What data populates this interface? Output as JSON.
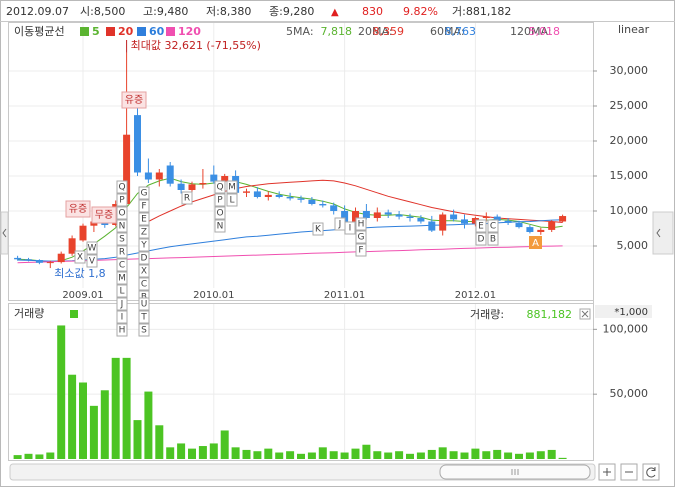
{
  "info": {
    "date": "2012.09.07",
    "open": "시:8,500",
    "high": "고:9,480",
    "low": "저:8,380",
    "close": "종:9,280",
    "change_sign": "▲",
    "change": "830",
    "change_pct": "9.82%",
    "volume": "거:881,182"
  },
  "chart_data": [
    {
      "type": "candlestick",
      "legend_title": "이동평균선",
      "scale": "linear",
      "categories": [
        null,
        null,
        null,
        null,
        null,
        null,
        "2009.01",
        null,
        null,
        null,
        null,
        null,
        null,
        null,
        null,
        null,
        null,
        null,
        "2010.01",
        null,
        null,
        null,
        null,
        null,
        null,
        null,
        null,
        null,
        null,
        null,
        "2011.01",
        null,
        null,
        null,
        null,
        null,
        null,
        null,
        null,
        null,
        null,
        null,
        "2012.01",
        null,
        null,
        null,
        null,
        null,
        null,
        null,
        null
      ],
      "open": [
        3300,
        3100,
        3000,
        2600,
        2700,
        3900,
        5800,
        7900,
        8500,
        8000,
        11000,
        23700,
        15500,
        14500,
        16500,
        13900,
        13000,
        13800,
        15200,
        14200,
        15000,
        12600,
        12800,
        12000,
        12300,
        12000,
        11800,
        11600,
        11000,
        10800,
        10000,
        8500,
        10000,
        9000,
        9800,
        9500,
        9200,
        9000,
        8500,
        7200,
        9500,
        8800,
        8200,
        9000,
        9200,
        8600,
        8300,
        7700,
        7000,
        7300,
        8500
      ],
      "high": [
        3600,
        3300,
        3100,
        2900,
        4200,
        6500,
        8200,
        9300,
        9800,
        11500,
        32621,
        25000,
        17500,
        16000,
        17000,
        14500,
        14200,
        16000,
        16500,
        15300,
        15800,
        13200,
        13400,
        12800,
        12800,
        12600,
        12200,
        12000,
        11500,
        11200,
        10800,
        10500,
        11000,
        10500,
        10200,
        10000,
        9600,
        9400,
        9300,
        9800,
        10200,
        9500,
        9200,
        9800,
        9500,
        9000,
        8600,
        8000,
        7600,
        8700,
        9480
      ],
      "low": [
        2900,
        2800,
        2400,
        1850,
        2500,
        3600,
        5600,
        7000,
        7600,
        7800,
        10500,
        15000,
        14000,
        13500,
        13500,
        12500,
        12300,
        13200,
        13900,
        13500,
        12300,
        12000,
        11800,
        11500,
        11800,
        11500,
        11200,
        10800,
        10500,
        9500,
        8000,
        8200,
        8800,
        8500,
        9000,
        8800,
        8500,
        8200,
        7000,
        6500,
        8500,
        7500,
        7800,
        8500,
        8400,
        8000,
        7500,
        6800,
        6600,
        7000,
        8380
      ],
      "close": [
        3100,
        3000,
        2600,
        2700,
        3900,
        6100,
        7900,
        8500,
        8000,
        11000,
        20900,
        15500,
        14500,
        15500,
        13900,
        13000,
        13800,
        14000,
        14200,
        15000,
        12600,
        12800,
        12000,
        12300,
        12000,
        11800,
        11600,
        11000,
        10800,
        10000,
        8500,
        10000,
        9000,
        9800,
        9500,
        9200,
        9000,
        8500,
        7200,
        9500,
        8800,
        8200,
        9000,
        9200,
        8600,
        8300,
        7700,
        7000,
        7300,
        8450,
        9280
      ],
      "up_color": "#e8432c",
      "down_color": "#3b8fe4",
      "series": [
        {
          "name": "5",
          "color": "#5bb431",
          "label": "5MA:",
          "last_label": "7,818",
          "values": [
            3100,
            3050,
            2900,
            2800,
            2900,
            3400,
            4300,
            5300,
            6400,
            7600,
            10500,
            12500,
            13700,
            14300,
            14700,
            14200,
            13900,
            13800,
            14000,
            14300,
            14200,
            13800,
            13300,
            12800,
            12400,
            12100,
            11900,
            11700,
            11400,
            11000,
            10300,
            9800,
            9500,
            9400,
            9400,
            9500,
            9300,
            9100,
            8700,
            8600,
            8600,
            8500,
            8500,
            8700,
            8800,
            8700,
            8500,
            8100,
            7700,
            7600,
            7818
          ]
        },
        {
          "name": "20",
          "color": "#e0332a",
          "label": "20MA:",
          "last_label": "8,359",
          "values": [
            null,
            null,
            null,
            null,
            null,
            null,
            null,
            null,
            null,
            null,
            null,
            null,
            8500,
            9300,
            10000,
            10700,
            11300,
            11800,
            12300,
            12800,
            13200,
            13500,
            13700,
            13900,
            14000,
            14100,
            14200,
            14300,
            14400,
            14300,
            14000,
            13600,
            13100,
            12600,
            12100,
            11700,
            11300,
            10900,
            10500,
            10200,
            9900,
            9600,
            9400,
            9200,
            9000,
            8900,
            8800,
            8700,
            8600,
            8500,
            8359
          ]
        },
        {
          "name": "60",
          "color": "#2f7fdc",
          "label": "60MA:",
          "last_label": "8,763",
          "values": [
            3000,
            2950,
            2900,
            2850,
            2850,
            2900,
            3000,
            3100,
            3200,
            3400,
            3700,
            4000,
            4300,
            4600,
            4900,
            5100,
            5300,
            5500,
            5700,
            5900,
            6100,
            6300,
            6400,
            6550,
            6700,
            6850,
            7000,
            7100,
            7200,
            7300,
            7400,
            7500,
            7600,
            7700,
            7750,
            7800,
            7850,
            7900,
            7950,
            8000,
            8050,
            8100,
            8150,
            8200,
            8300,
            8400,
            8450,
            8500,
            8600,
            8700,
            8763
          ]
        },
        {
          "name": "120",
          "color": "#f04fb0",
          "label": "120MA:",
          "last_label": "5,018",
          "values": [
            2600,
            2650,
            2700,
            2750,
            2800,
            2850,
            2900,
            2950,
            3000,
            3050,
            3100,
            3150,
            3200,
            3250,
            3300,
            3350,
            3400,
            3450,
            3500,
            3550,
            3600,
            3650,
            3700,
            3750,
            3800,
            3850,
            3900,
            3950,
            4000,
            4050,
            4100,
            4150,
            4200,
            4250,
            4300,
            4350,
            4400,
            4450,
            4500,
            4550,
            4600,
            4650,
            4700,
            4750,
            4800,
            4830,
            4870,
            4910,
            4950,
            4990,
            5018
          ]
        }
      ],
      "ylim": [
        -1000,
        37000
      ],
      "yticks": [
        {
          "value": 5000,
          "label": "5,000"
        },
        {
          "value": 10000,
          "label": "10,000"
        },
        {
          "value": 15000,
          "label": "15,000"
        },
        {
          "value": 20000,
          "label": "20,000"
        },
        {
          "value": 25000,
          "label": "25,000"
        },
        {
          "value": 30000,
          "label": "30,000"
        }
      ],
      "grid": true,
      "max_label": "최대값 32,621 (-71,55%)",
      "min_label": "최소값 1,8",
      "events": [
        "유증",
        "유증",
        "무증"
      ],
      "highlight": "A",
      "markers": [
        [
          "Q",
          "P",
          "O",
          "N",
          "S",
          "R",
          "C",
          "M",
          "L"
        ],
        [
          "J",
          "I",
          "H"
        ],
        [
          "G",
          "F",
          "E",
          "Z",
          "Y",
          "D",
          "X",
          "C",
          "B",
          "W",
          "V"
        ],
        [
          "U",
          "T",
          "S"
        ],
        [
          "R"
        ],
        [
          "Q",
          "P",
          "O",
          "N"
        ],
        [
          "M",
          "L"
        ],
        [
          "K"
        ],
        [
          "J"
        ],
        [
          "I"
        ],
        [
          "H",
          "G",
          "F"
        ],
        [
          "E",
          "D"
        ],
        [
          "C",
          "B"
        ],
        [
          "X"
        ],
        [
          "W",
          "V"
        ]
      ]
    },
    {
      "type": "bar",
      "title": "거래량",
      "unit": "*1,000",
      "value_name": "거래량:",
      "value_label": "881,182",
      "color": "#4cc423",
      "values": [
        3000,
        4000,
        3500,
        5000,
        103000,
        65000,
        59000,
        41000,
        53000,
        78000,
        78000,
        30000,
        52000,
        26000,
        9000,
        12000,
        8000,
        10000,
        12000,
        22000,
        9000,
        7000,
        6000,
        8000,
        5000,
        6000,
        4000,
        5000,
        9000,
        6000,
        5000,
        8000,
        11000,
        6000,
        5000,
        6000,
        4000,
        5000,
        7000,
        9000,
        6000,
        5000,
        8000,
        6000,
        7000,
        5000,
        4000,
        5000,
        6000,
        7000,
        881.182
      ],
      "ylim": [
        0,
        118000
      ],
      "yticks": [
        {
          "value": 50000,
          "label": "50,000"
        },
        {
          "value": 100000,
          "label": "100,000"
        }
      ],
      "grid": true
    }
  ]
}
